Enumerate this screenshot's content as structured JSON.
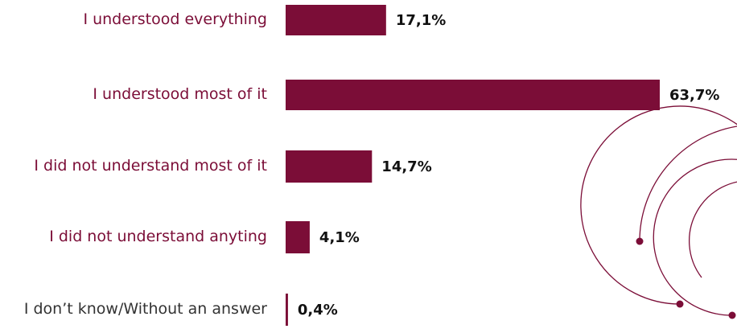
{
  "chart_data": {
    "type": "hbar",
    "categories": [
      "I understood everything",
      "I understood most of it",
      "I did not understand most of it",
      "I did not understand anyting",
      "I don’t know/Without an answer"
    ],
    "values": [
      17.1,
      63.7,
      14.7,
      4.1,
      0.4
    ],
    "value_labels": [
      "17,1%",
      "63,7%",
      "14,7%",
      "4,1%",
      "0,4%"
    ],
    "color": "#7b0d37",
    "label_colors": [
      "#7b0d37",
      "#7b0d37",
      "#7b0d37",
      "#7b0d37",
      "#333333"
    ]
  }
}
